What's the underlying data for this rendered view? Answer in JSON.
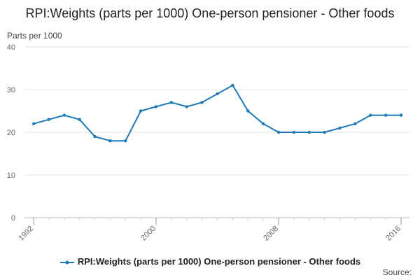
{
  "chart_data": {
    "type": "line",
    "title": "RPI:Weights (parts per 1000) One-person pensioner - Other foods",
    "ylabel": "Parts per 1000",
    "xlabel": "",
    "x": [
      1992,
      1993,
      1994,
      1995,
      1996,
      1997,
      1998,
      1999,
      2000,
      2001,
      2002,
      2003,
      2004,
      2005,
      2006,
      2007,
      2008,
      2009,
      2010,
      2011,
      2012,
      2013,
      2014,
      2015,
      2016
    ],
    "x_ticks": [
      "1992",
      "2000",
      "2008",
      "2016"
    ],
    "y_ticks": [
      "0",
      "10",
      "20",
      "30",
      "40"
    ],
    "ylim": [
      0,
      40
    ],
    "xlim": [
      1992,
      2016
    ],
    "grid": "horizontal",
    "legend_position": "bottom",
    "series": [
      {
        "name": "RPI:Weights (parts per 1000) One-person pensioner - Other foods",
        "color": "#1f7ab8",
        "values": [
          22,
          23,
          24,
          23,
          19,
          18,
          18,
          25,
          26,
          27,
          26,
          27,
          29,
          31,
          25,
          22,
          20,
          20,
          20,
          20,
          21,
          22,
          24,
          24,
          24
        ]
      }
    ]
  },
  "source_label": "Source:"
}
